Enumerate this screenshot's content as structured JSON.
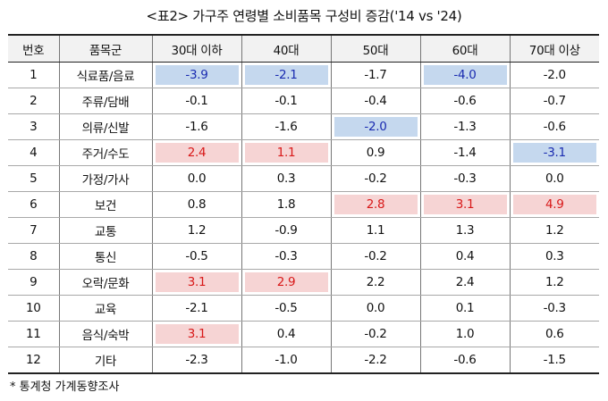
{
  "title": "<표2> 가구주 연령별 소비품목 구성비 증감('14 vs '24)",
  "columns": [
    "번호",
    "품목군",
    "30대 이하",
    "40대",
    "50대",
    "60대",
    "70대 이상"
  ],
  "rows": [
    {
      "no": "1",
      "category": "식료품/음료",
      "values": [
        "-3.9",
        "-2.1",
        "-1.7",
        "-4.0",
        "-2.0"
      ],
      "highlight": [
        "neg",
        "neg",
        "",
        "neg",
        ""
      ]
    },
    {
      "no": "2",
      "category": "주류/담배",
      "values": [
        "-0.1",
        "-0.1",
        "-0.4",
        "-0.6",
        "-0.7"
      ],
      "highlight": [
        "",
        "",
        "",
        "",
        ""
      ]
    },
    {
      "no": "3",
      "category": "의류/신발",
      "values": [
        "-1.6",
        "-1.6",
        "-2.0",
        "-1.3",
        "-0.6"
      ],
      "highlight": [
        "",
        "",
        "neg",
        "",
        ""
      ]
    },
    {
      "no": "4",
      "category": "주거/수도",
      "values": [
        "2.4",
        "1.1",
        "0.9",
        "-1.4",
        "-3.1"
      ],
      "highlight": [
        "pos",
        "pos",
        "",
        "",
        "neg"
      ]
    },
    {
      "no": "5",
      "category": "가정/가사",
      "values": [
        "0.0",
        "0.3",
        "-0.2",
        "-0.3",
        "0.0"
      ],
      "highlight": [
        "",
        "",
        "",
        "",
        ""
      ]
    },
    {
      "no": "6",
      "category": "보건",
      "values": [
        "0.8",
        "1.8",
        "2.8",
        "3.1",
        "4.9"
      ],
      "highlight": [
        "",
        "",
        "pos",
        "pos",
        "pos"
      ]
    },
    {
      "no": "7",
      "category": "교통",
      "values": [
        "1.2",
        "-0.9",
        "1.1",
        "1.3",
        "1.2"
      ],
      "highlight": [
        "",
        "",
        "",
        "",
        ""
      ]
    },
    {
      "no": "8",
      "category": "통신",
      "values": [
        "-0.5",
        "-0.3",
        "-0.2",
        "0.4",
        "0.3"
      ],
      "highlight": [
        "",
        "",
        "",
        "",
        ""
      ]
    },
    {
      "no": "9",
      "category": "오락/문화",
      "values": [
        "3.1",
        "2.9",
        "2.2",
        "2.4",
        "1.2"
      ],
      "highlight": [
        "pos",
        "pos",
        "",
        "",
        ""
      ]
    },
    {
      "no": "10",
      "category": "교육",
      "values": [
        "-2.1",
        "-0.5",
        "0.0",
        "0.1",
        "-0.3"
      ],
      "highlight": [
        "",
        "",
        "",
        "",
        ""
      ]
    },
    {
      "no": "11",
      "category": "음식/숙박",
      "values": [
        "3.1",
        "0.4",
        "-0.2",
        "1.0",
        "0.6"
      ],
      "highlight": [
        "pos",
        "",
        "",
        "",
        ""
      ]
    },
    {
      "no": "12",
      "category": "기타",
      "values": [
        "-2.3",
        "-1.0",
        "-2.2",
        "-0.6",
        "-1.5"
      ],
      "highlight": [
        "",
        "",
        "",
        "",
        ""
      ]
    }
  ],
  "source": "* 통계청 가계동향조사",
  "colors": {
    "highlight_negative_bg": "#c5d8ee",
    "highlight_negative_text": "#1a2bb0",
    "highlight_positive_bg": "#f6d4d4",
    "highlight_positive_text": "#d81818",
    "header_bg": "#f2f2f2"
  }
}
